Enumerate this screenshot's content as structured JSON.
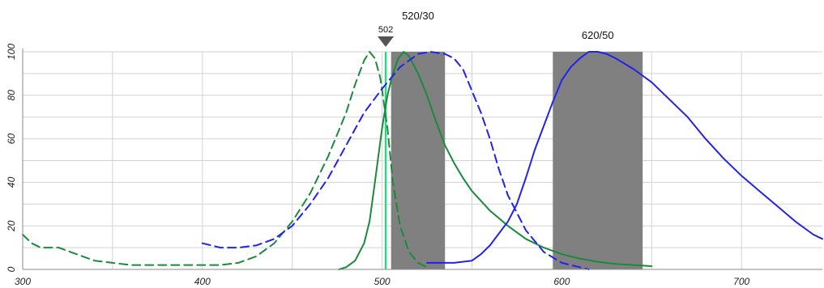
{
  "chart_data": {
    "type": "line",
    "title": "",
    "xlabel": "",
    "ylabel": "",
    "xlim": [
      300,
      745
    ],
    "ylim": [
      0,
      100
    ],
    "grid": true,
    "x_ticks": [
      "300",
      "400",
      "500",
      "600",
      "700"
    ],
    "x_tick_values": [
      300,
      400,
      500,
      600,
      700
    ],
    "y_ticks": [
      "0",
      "20",
      "40",
      "60",
      "80",
      "100"
    ],
    "y_tick_values": [
      0,
      20,
      40,
      60,
      80,
      100
    ],
    "laser_marker": {
      "label": "502",
      "x": 502,
      "color": "#00ee66"
    },
    "filter_bands": [
      {
        "label": "520/30",
        "from": 505,
        "to": 535,
        "color": "#808080"
      },
      {
        "label": "620/50",
        "from": 595,
        "to": 645,
        "color": "#808080"
      }
    ],
    "series": [
      {
        "color": "#1a8a3c",
        "dash": true,
        "points": [
          [
            300,
            16
          ],
          [
            305,
            12
          ],
          [
            310,
            10
          ],
          [
            320,
            10
          ],
          [
            330,
            7
          ],
          [
            340,
            4
          ],
          [
            350,
            3
          ],
          [
            360,
            2
          ],
          [
            380,
            2
          ],
          [
            400,
            2
          ],
          [
            410,
            2
          ],
          [
            420,
            3
          ],
          [
            430,
            6
          ],
          [
            440,
            12
          ],
          [
            450,
            22
          ],
          [
            460,
            35
          ],
          [
            470,
            52
          ],
          [
            480,
            72
          ],
          [
            485,
            85
          ],
          [
            490,
            96
          ],
          [
            493,
            100
          ],
          [
            496,
            97
          ],
          [
            499,
            88
          ],
          [
            503,
            65
          ],
          [
            506,
            40
          ],
          [
            510,
            20
          ],
          [
            515,
            8
          ],
          [
            520,
            3
          ],
          [
            525,
            1
          ]
        ]
      },
      {
        "color": "#1a8a3c",
        "dash": false,
        "points": [
          [
            476,
            0
          ],
          [
            480,
            1
          ],
          [
            485,
            4
          ],
          [
            490,
            12
          ],
          [
            493,
            22
          ],
          [
            496,
            40
          ],
          [
            500,
            65
          ],
          [
            503,
            80
          ],
          [
            506,
            90
          ],
          [
            509,
            97
          ],
          [
            512,
            100
          ],
          [
            515,
            98
          ],
          [
            520,
            90
          ],
          [
            525,
            80
          ],
          [
            530,
            68
          ],
          [
            535,
            57
          ],
          [
            540,
            49
          ],
          [
            545,
            42
          ],
          [
            550,
            36
          ],
          [
            560,
            27
          ],
          [
            570,
            20
          ],
          [
            580,
            14
          ],
          [
            590,
            10
          ],
          [
            600,
            7
          ],
          [
            610,
            5
          ],
          [
            620,
            3.5
          ],
          [
            630,
            2.5
          ],
          [
            640,
            2
          ],
          [
            650,
            1.5
          ]
        ]
      },
      {
        "color": "#2222ee",
        "dash": true,
        "points": [
          [
            400,
            12
          ],
          [
            410,
            10
          ],
          [
            420,
            10
          ],
          [
            430,
            11
          ],
          [
            440,
            14
          ],
          [
            450,
            20
          ],
          [
            460,
            30
          ],
          [
            470,
            42
          ],
          [
            480,
            57
          ],
          [
            490,
            72
          ],
          [
            500,
            83
          ],
          [
            510,
            93
          ],
          [
            520,
            99
          ],
          [
            527,
            100
          ],
          [
            535,
            99
          ],
          [
            540,
            97
          ],
          [
            545,
            92
          ],
          [
            550,
            82
          ],
          [
            555,
            72
          ],
          [
            560,
            60
          ],
          [
            565,
            46
          ],
          [
            570,
            34
          ],
          [
            580,
            18
          ],
          [
            590,
            8
          ],
          [
            600,
            3
          ],
          [
            610,
            1
          ],
          [
            615,
            0
          ]
        ]
      },
      {
        "color": "#2222ee",
        "dash": false,
        "points": [
          [
            525,
            3
          ],
          [
            530,
            3
          ],
          [
            540,
            3
          ],
          [
            550,
            4
          ],
          [
            555,
            7
          ],
          [
            560,
            11
          ],
          [
            570,
            22
          ],
          [
            575,
            30
          ],
          [
            580,
            42
          ],
          [
            585,
            55
          ],
          [
            590,
            66
          ],
          [
            595,
            77
          ],
          [
            600,
            87
          ],
          [
            605,
            93
          ],
          [
            610,
            97
          ],
          [
            615,
            100
          ],
          [
            620,
            100
          ],
          [
            625,
            99
          ],
          [
            630,
            97
          ],
          [
            640,
            92
          ],
          [
            650,
            86
          ],
          [
            660,
            78
          ],
          [
            670,
            70
          ],
          [
            680,
            60
          ],
          [
            690,
            51
          ],
          [
            700,
            43
          ],
          [
            710,
            36
          ],
          [
            720,
            29
          ],
          [
            730,
            22
          ],
          [
            740,
            16
          ],
          [
            745,
            14
          ]
        ]
      }
    ]
  }
}
